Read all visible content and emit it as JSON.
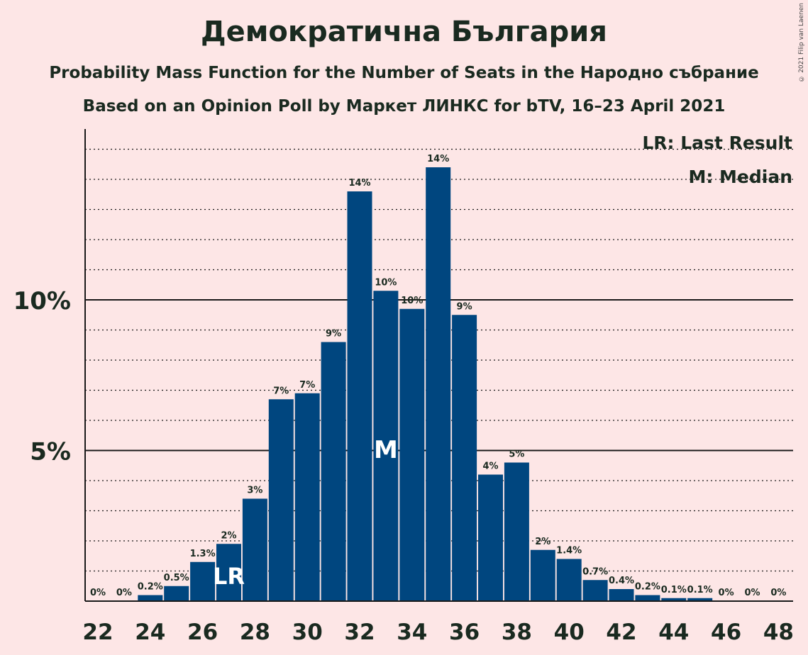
{
  "chart_data": {
    "type": "bar",
    "title": "Демократична България",
    "subtitle": "Probability Mass Function for the Number of Seats in the Народно събрание",
    "subtitle2": "Based on an Opinion Poll by Маркет ЛИНКС for bTV, 16–23 April 2021",
    "copyright": "© 2021 Filip van Laenen",
    "categories": [
      22,
      23,
      24,
      25,
      26,
      27,
      28,
      29,
      30,
      31,
      32,
      33,
      34,
      35,
      36,
      37,
      38,
      39,
      40,
      41,
      42,
      43,
      44,
      45,
      46,
      47,
      48
    ],
    "values": [
      0.0,
      0.0,
      0.2,
      0.5,
      1.3,
      1.9,
      3.4,
      6.7,
      6.9,
      8.6,
      13.6,
      10.3,
      9.7,
      14.4,
      9.5,
      4.2,
      4.6,
      1.7,
      1.4,
      0.7,
      0.4,
      0.2,
      0.1,
      0.1,
      0.0,
      0.0,
      0.0
    ],
    "bar_labels": [
      "0%",
      "0%",
      "0.2%",
      "0.5%",
      "1.3%",
      "2%",
      "3%",
      "7%",
      "7%",
      "9%",
      "14%",
      "10%",
      "10%",
      "14%",
      "9%",
      "4%",
      "5%",
      "2%",
      "1.4%",
      "0.7%",
      "0.4%",
      "0.2%",
      "0.1%",
      "0.1%",
      "0%",
      "0%",
      "0%"
    ],
    "x_tick_labels": [
      "22",
      "24",
      "26",
      "28",
      "30",
      "32",
      "34",
      "36",
      "38",
      "40",
      "42",
      "44",
      "46",
      "48"
    ],
    "y_tick_labels": [
      {
        "value": 5,
        "label": "5%"
      },
      {
        "value": 10,
        "label": "10%"
      }
    ],
    "ylim": [
      0,
      15.6
    ],
    "last_result": 27,
    "median": 33,
    "last_result_marker": "LR",
    "median_marker": "M",
    "legend": [
      "LR: Last Result",
      "M: Median"
    ],
    "legend_position": "top-right",
    "grid": "dotted every 1%, solid at 5% and 10%",
    "colors": {
      "bar": "#00467F",
      "background": "#FDE6E6",
      "text": "#1a2a20",
      "marker_text": "#FFFFFF"
    }
  }
}
